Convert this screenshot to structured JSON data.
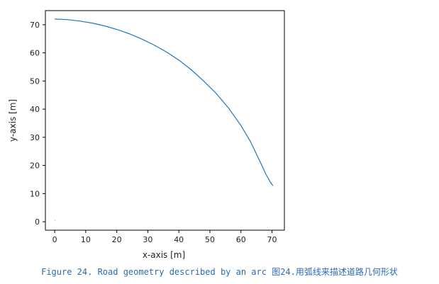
{
  "chart_data": {
    "type": "line",
    "xlabel": "x-axis [m]",
    "ylabel": "y-axis [m]",
    "xlim": [
      -3,
      74
    ],
    "ylim": [
      -3,
      75
    ],
    "xticks": [
      0,
      10,
      20,
      30,
      40,
      50,
      60,
      70
    ],
    "yticks": [
      0,
      10,
      20,
      30,
      40,
      50,
      60,
      70
    ],
    "grid": false,
    "series": [
      {
        "color": "#1f77b4",
        "x": [
          0,
          4,
          8,
          12,
          16,
          20,
          24,
          28,
          32,
          36,
          40,
          44,
          48,
          52,
          56,
          60,
          63,
          66,
          68,
          69.5,
          70.3
        ],
        "y": [
          72,
          71.8,
          71.3,
          70.6,
          69.6,
          68.3,
          66.8,
          64.9,
          62.8,
          60.3,
          57.4,
          54.0,
          50.0,
          45.6,
          40.4,
          34.2,
          28.6,
          21.7,
          17.0,
          14.0,
          12.8
        ]
      },
      {
        "color": "#1f77b4",
        "x": [
          0,
          0.1
        ],
        "y": [
          0.5,
          0.5
        ]
      }
    ]
  },
  "caption": "Figure 24. Road geometry described by an arc 图24.用弧线来描述道路几何形状"
}
